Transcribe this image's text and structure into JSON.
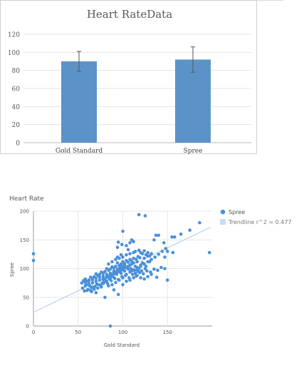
{
  "chart_data": [
    {
      "type": "bar",
      "title": "Heart RateData",
      "categories": [
        "Gold Standard",
        "Spree"
      ],
      "values": [
        90,
        92
      ],
      "error": [
        [
          79,
          101
        ],
        [
          78,
          106
        ]
      ],
      "yticks": [
        0,
        20,
        40,
        60,
        80,
        100,
        120
      ],
      "ylim": [
        0,
        120
      ],
      "grid": true,
      "bar_color": "#5b93c8",
      "error_color": "#555555"
    },
    {
      "type": "scatter",
      "title": "Heart Rate",
      "xlabel": "Gold Standard",
      "ylabel": "Spree",
      "xlim": [
        0,
        200
      ],
      "ylim": [
        0,
        200
      ],
      "xticks": [
        0,
        50,
        100,
        150
      ],
      "yticks": [
        0,
        50,
        100,
        150,
        200
      ],
      "grid": true,
      "legend_position": "right",
      "legend": [
        "Spree",
        "Trendline r^2 = 0.477"
      ],
      "point_color": "#4a90d9",
      "trend_color": "#a8c8ec",
      "trendline": {
        "x": [
          0,
          198
        ],
        "y": [
          24,
          172
        ]
      },
      "points": [
        [
          0,
          126
        ],
        [
          0,
          114
        ],
        [
          118,
          194
        ],
        [
          125,
          192
        ],
        [
          186,
          180
        ],
        [
          175,
          167
        ],
        [
          165,
          160
        ],
        [
          140,
          158
        ],
        [
          137,
          158
        ],
        [
          197,
          128
        ],
        [
          100,
          165
        ],
        [
          108,
          145
        ],
        [
          104,
          140
        ],
        [
          110,
          150
        ],
        [
          112,
          147
        ],
        [
          99,
          142
        ],
        [
          95,
          146
        ],
        [
          94,
          137
        ],
        [
          106,
          133
        ],
        [
          114,
          130
        ],
        [
          118,
          132
        ],
        [
          120,
          128
        ],
        [
          122,
          126
        ],
        [
          124,
          131
        ],
        [
          126,
          124
        ],
        [
          128,
          128
        ],
        [
          130,
          122
        ],
        [
          119,
          119
        ],
        [
          117,
          121
        ],
        [
          115,
          116
        ],
        [
          112,
          118
        ],
        [
          110,
          113
        ],
        [
          108,
          116
        ],
        [
          106,
          111
        ],
        [
          104,
          114
        ],
        [
          102,
          109
        ],
        [
          100,
          112
        ],
        [
          98,
          108
        ],
        [
          96,
          105
        ],
        [
          94,
          110
        ],
        [
          92,
          104
        ],
        [
          90,
          101
        ],
        [
          88,
          103
        ],
        [
          86,
          99
        ],
        [
          84,
          97
        ],
        [
          82,
          100
        ],
        [
          80,
          95
        ],
        [
          78,
          92
        ],
        [
          76,
          94
        ],
        [
          74,
          90
        ],
        [
          72,
          88
        ],
        [
          70,
          91
        ],
        [
          68,
          86
        ],
        [
          66,
          82
        ],
        [
          64,
          85
        ],
        [
          62,
          80
        ],
        [
          60,
          78
        ],
        [
          58,
          76
        ],
        [
          56,
          79
        ],
        [
          59,
          72
        ],
        [
          63,
          70
        ],
        [
          67,
          68
        ],
        [
          71,
          73
        ],
        [
          75,
          71
        ],
        [
          79,
          76
        ],
        [
          83,
          74
        ],
        [
          87,
          79
        ],
        [
          91,
          83
        ],
        [
          95,
          81
        ],
        [
          99,
          86
        ],
        [
          103,
          88
        ],
        [
          107,
          84
        ],
        [
          111,
          90
        ],
        [
          115,
          87
        ],
        [
          119,
          93
        ],
        [
          123,
          91
        ],
        [
          127,
          96
        ],
        [
          131,
          94
        ],
        [
          135,
          99
        ],
        [
          139,
          97
        ],
        [
          143,
          102
        ],
        [
          147,
          100
        ],
        [
          150,
          80
        ],
        [
          138,
          85
        ],
        [
          132,
          90
        ],
        [
          128,
          86
        ],
        [
          124,
          82
        ],
        [
          120,
          84
        ],
        [
          116,
          88
        ],
        [
          114,
          92
        ],
        [
          110,
          96
        ],
        [
          106,
          99
        ],
        [
          102,
          102
        ],
        [
          98,
          97
        ],
        [
          94,
          94
        ],
        [
          90,
          91
        ],
        [
          86,
          88
        ],
        [
          82,
          86
        ],
        [
          78,
          83
        ],
        [
          74,
          80
        ],
        [
          70,
          78
        ],
        [
          66,
          75
        ],
        [
          62,
          73
        ],
        [
          58,
          70
        ],
        [
          55,
          66
        ],
        [
          60,
          62
        ],
        [
          65,
          60
        ],
        [
          70,
          58
        ],
        [
          80,
          50
        ],
        [
          90,
          63
        ],
        [
          95,
          55
        ],
        [
          100,
          72
        ],
        [
          104,
          78
        ],
        [
          108,
          80
        ],
        [
          112,
          84
        ],
        [
          116,
          98
        ],
        [
          120,
          104
        ],
        [
          124,
          108
        ],
        [
          128,
          112
        ],
        [
          132,
          116
        ],
        [
          136,
          120
        ],
        [
          140,
          125
        ],
        [
          144,
          130
        ],
        [
          148,
          135
        ],
        [
          155,
          155
        ],
        [
          158,
          155
        ],
        [
          147,
          120
        ],
        [
          146,
          145
        ],
        [
          135,
          150
        ],
        [
          130,
          112
        ],
        [
          126,
          104
        ],
        [
          122,
          110
        ],
        [
          118,
          100
        ],
        [
          114,
          104
        ],
        [
          110,
          108
        ],
        [
          106,
          104
        ],
        [
          102,
          96
        ],
        [
          98,
          92
        ],
        [
          94,
          98
        ],
        [
          90,
          95
        ],
        [
          86,
          92
        ],
        [
          82,
          90
        ],
        [
          78,
          87
        ],
        [
          74,
          85
        ],
        [
          70,
          83
        ],
        [
          66,
          80
        ],
        [
          62,
          78
        ],
        [
          58,
          82
        ],
        [
          54,
          75
        ],
        [
          84,
          108
        ],
        [
          88,
          112
        ],
        [
          92,
          116
        ],
        [
          96,
          118
        ],
        [
          100,
          120
        ],
        [
          104,
          124
        ],
        [
          108,
          126
        ],
        [
          112,
          128
        ],
        [
          98,
          124
        ],
        [
          94,
          120
        ],
        [
          90,
          96
        ],
        [
          86,
          84
        ],
        [
          82,
          78
        ],
        [
          78,
          74
        ],
        [
          76,
          68
        ],
        [
          72,
          66
        ],
        [
          68,
          64
        ],
        [
          64,
          62
        ],
        [
          84,
          70
        ],
        [
          88,
          72
        ],
        [
          92,
          76
        ],
        [
          96,
          80
        ],
        [
          100,
          84
        ],
        [
          104,
          90
        ],
        [
          108,
          94
        ],
        [
          112,
          98
        ],
        [
          116,
          102
        ],
        [
          120,
          106
        ],
        [
          124,
          118
        ],
        [
          128,
          122
        ],
        [
          132,
          126
        ],
        [
          116,
          112
        ],
        [
          112,
          110
        ],
        [
          108,
          106
        ],
        [
          104,
          102
        ],
        [
          100,
          100
        ],
        [
          96,
          98
        ],
        [
          92,
          94
        ],
        [
          88,
          90
        ],
        [
          84,
          86
        ],
        [
          80,
          82
        ],
        [
          102,
          107
        ],
        [
          98,
          103
        ],
        [
          94,
          99
        ],
        [
          90,
          93
        ],
        [
          86,
          89
        ],
        [
          82,
          85
        ],
        [
          78,
          81
        ],
        [
          101,
          98
        ],
        [
          97,
          94
        ],
        [
          93,
          90
        ],
        [
          89,
          86
        ],
        [
          85,
          82
        ],
        [
          81,
          78
        ],
        [
          77,
          75
        ],
        [
          73,
          72
        ],
        [
          69,
          69
        ],
        [
          65,
          67
        ],
        [
          61,
          64
        ],
        [
          57,
          61
        ],
        [
          86,
          0
        ],
        [
          150,
          130
        ],
        [
          156,
          128
        ],
        [
          125,
          100
        ],
        [
          121,
          96
        ],
        [
          117,
          95
        ],
        [
          113,
          97
        ],
        [
          109,
          100
        ],
        [
          105,
          103
        ],
        [
          101,
          105
        ],
        [
          97,
          101
        ]
      ]
    }
  ]
}
